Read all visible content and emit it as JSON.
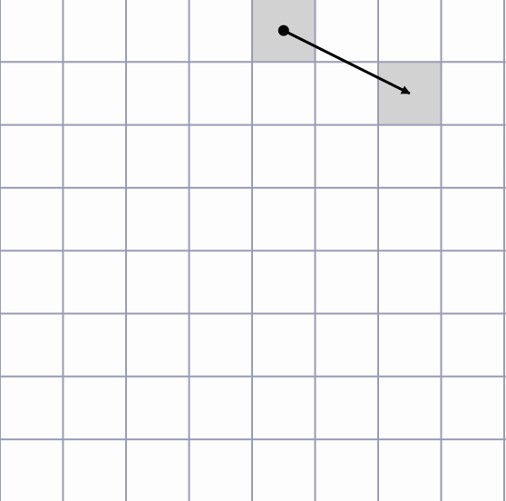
{
  "board": {
    "columns": 8,
    "rows": 8,
    "cell_fill": "#fdfdfd",
    "grid_line_color": "#9a9cb4",
    "highlight_color": "#d2d2d2",
    "arrow_color": "#000000",
    "move": {
      "from": {
        "col": 4,
        "row": 0
      },
      "to": {
        "col": 6,
        "row": 1
      }
    }
  }
}
